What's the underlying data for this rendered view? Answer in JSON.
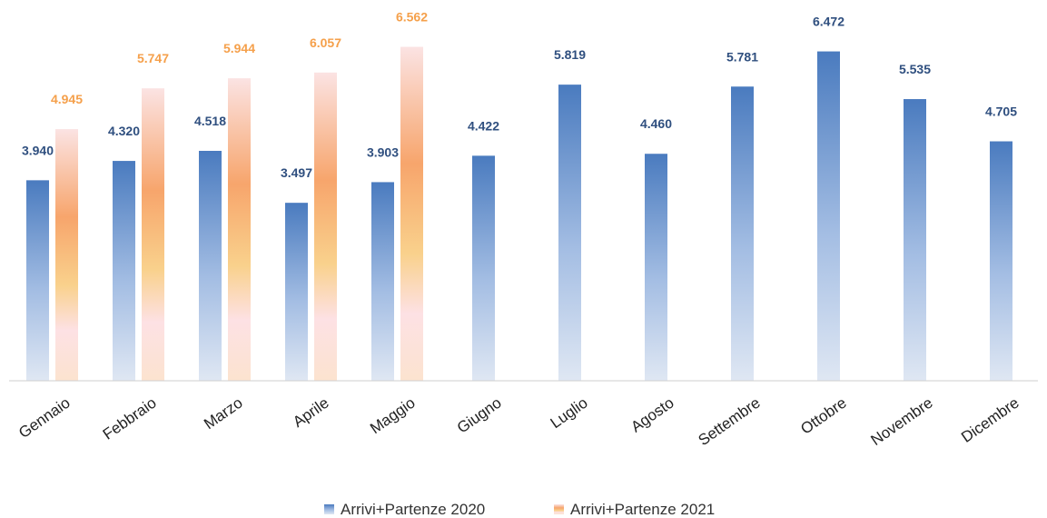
{
  "chart_data": {
    "type": "bar",
    "categories": [
      "Gennaio",
      "Febbraio",
      "Marzo",
      "Aprile",
      "Maggio",
      "Giugno",
      "Luglio",
      "Agosto",
      "Settembre",
      "Ottobre",
      "Novembre",
      "Dicembre"
    ],
    "series": [
      {
        "name": "Arrivi+Partenze 2020",
        "values": [
          3940,
          4320,
          4518,
          3497,
          3903,
          4422,
          5819,
          4460,
          5781,
          6472,
          5535,
          4705
        ],
        "labels": [
          "3.940",
          "4.320",
          "4.518",
          "3.497",
          "3.903",
          "4.422",
          "5.819",
          "4.460",
          "5.781",
          "6.472",
          "5.535",
          "4.705"
        ],
        "color": "#4a7bbf"
      },
      {
        "name": "Arrivi+Partenze 2021",
        "values": [
          4945,
          5747,
          5944,
          6057,
          6562,
          null,
          null,
          null,
          null,
          null,
          null,
          null
        ],
        "labels": [
          "4.945",
          "5.747",
          "5.944",
          "6.057",
          "6.562",
          "",
          "",
          "",
          "",
          "",
          "",
          ""
        ],
        "color": "#f5a04b"
      }
    ],
    "title": "",
    "xlabel": "",
    "ylabel": "",
    "ylim": [
      0,
      7000
    ],
    "grid": false,
    "legend": "bottom-center"
  }
}
